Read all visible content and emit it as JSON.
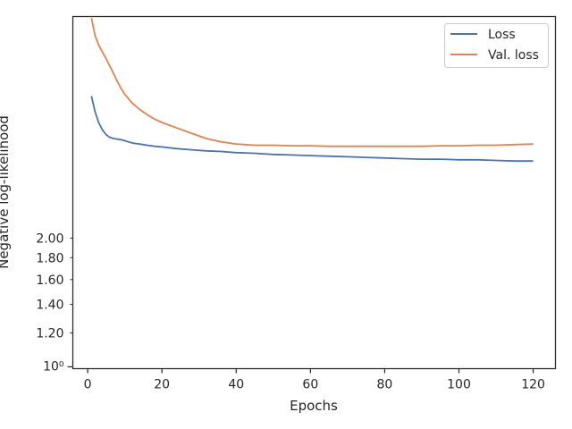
{
  "chart_data": {
    "type": "line",
    "xlabel": "Epochs",
    "ylabel": "Negative log-likelihood",
    "xlim": [
      -4,
      126
    ],
    "ylim": [
      0.99,
      6.6
    ],
    "yscale": "log",
    "x_ticks": [
      0,
      20,
      40,
      60,
      80,
      100,
      120
    ],
    "y_major_tick_label": "10⁰",
    "y_minor_tick_labels": [
      "1.20",
      "1.40",
      "1.60",
      "1.80",
      "2.00"
    ],
    "legend_position": "upper right",
    "grid": false,
    "series": [
      {
        "name": "Loss",
        "color": "#4c72b0",
        "x": [
          1,
          2,
          3,
          4,
          5,
          6,
          7,
          8,
          9,
          10,
          12,
          14,
          16,
          18,
          20,
          24,
          28,
          32,
          36,
          40,
          45,
          50,
          55,
          60,
          65,
          70,
          75,
          80,
          85,
          90,
          95,
          100,
          105,
          110,
          115,
          120
        ],
        "y": [
          4.3,
          3.95,
          3.72,
          3.58,
          3.49,
          3.44,
          3.42,
          3.41,
          3.4,
          3.38,
          3.34,
          3.32,
          3.3,
          3.28,
          3.27,
          3.24,
          3.22,
          3.2,
          3.19,
          3.17,
          3.16,
          3.14,
          3.13,
          3.12,
          3.11,
          3.1,
          3.09,
          3.08,
          3.07,
          3.06,
          3.06,
          3.05,
          3.05,
          3.04,
          3.03,
          3.03
        ]
      },
      {
        "name": "Val. loss",
        "color": "#dd8452",
        "x": [
          1,
          2,
          3,
          4,
          5,
          6,
          7,
          8,
          9,
          10,
          12,
          14,
          16,
          18,
          20,
          24,
          28,
          32,
          36,
          40,
          45,
          50,
          55,
          60,
          65,
          70,
          75,
          80,
          85,
          90,
          95,
          100,
          105,
          110,
          115,
          120
        ],
        "y": [
          6.55,
          5.95,
          5.65,
          5.45,
          5.25,
          5.05,
          4.85,
          4.65,
          4.48,
          4.34,
          4.14,
          4.0,
          3.89,
          3.8,
          3.73,
          3.62,
          3.52,
          3.42,
          3.36,
          3.32,
          3.3,
          3.3,
          3.29,
          3.29,
          3.28,
          3.28,
          3.28,
          3.28,
          3.28,
          3.28,
          3.29,
          3.29,
          3.3,
          3.3,
          3.31,
          3.32
        ]
      }
    ]
  }
}
